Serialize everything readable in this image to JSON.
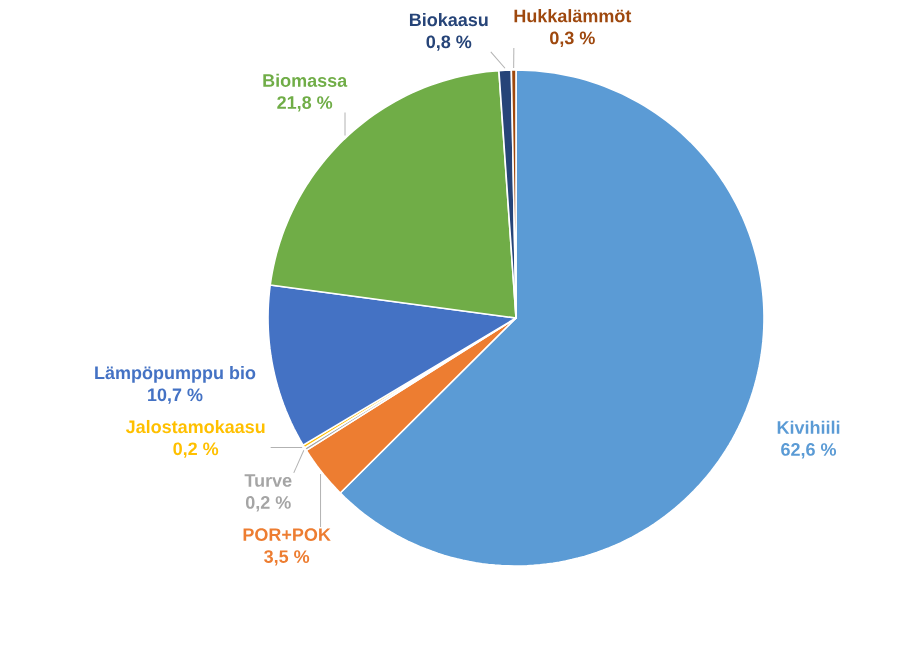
{
  "chart_data": {
    "type": "pie",
    "categories": [
      "Kivihiili",
      "POR+POK",
      "Turve",
      "Jalostamokaasu",
      "Lämpöpumppu bio",
      "Biomassa",
      "Biokaasu",
      "Hukkalämmöt"
    ],
    "values": [
      62.6,
      3.5,
      0.2,
      0.2,
      10.7,
      21.8,
      0.8,
      0.3
    ],
    "colors": [
      "#5b9bd5",
      "#ed7d31",
      "#a5a5a5",
      "#ffc000",
      "#4472c4",
      "#70ad47",
      "#264478",
      "#9e480e"
    ],
    "value_labels": [
      "62,6 %",
      "3,5 %",
      "0,2 %",
      "0,2 %",
      "10,7 %",
      "21,8 %",
      "0,8 %",
      "0,3 %"
    ]
  }
}
